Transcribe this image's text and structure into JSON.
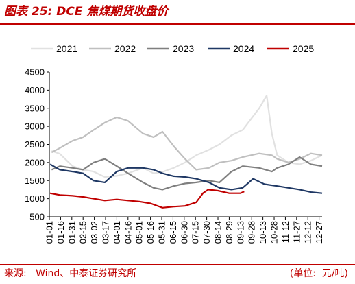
{
  "title": "图表 25:  DCE 焦煤期货收盘价",
  "source": "来源:   Wind、中泰证券研究所",
  "unit": "(单位:  元/吨)",
  "chart_data": {
    "type": "line",
    "xlabel": "",
    "ylabel": "",
    "ylim": [
      500,
      4500
    ],
    "yticks": [
      500,
      1000,
      1500,
      2000,
      2500,
      3000,
      3500,
      4000,
      4500
    ],
    "xtick_labels": [
      "01-01",
      "01-16",
      "01-31",
      "02-15",
      "03-02",
      "03-17",
      "04-01",
      "04-16",
      "05-01",
      "05-16",
      "05-31",
      "06-15",
      "06-30",
      "07-15",
      "07-30",
      "08-14",
      "08-29",
      "09-13",
      "09-28",
      "10-13",
      "10-28",
      "11-12",
      "11-27",
      "12-12",
      "12-27"
    ],
    "x_start": "01-01",
    "x_end": "12-31",
    "legend_position": "top",
    "grid": false,
    "series": [
      {
        "name": "2021",
        "color": "#e1e1e1",
        "points": [
          [
            "01-04",
            2320
          ],
          [
            "01-15",
            2240
          ],
          [
            "02-01",
            1900
          ],
          [
            "02-15",
            1800
          ],
          [
            "03-01",
            1750
          ],
          [
            "03-16",
            1600
          ],
          [
            "04-01",
            1630
          ],
          [
            "04-16",
            1700
          ],
          [
            "05-06",
            1850
          ],
          [
            "05-20",
            1700
          ],
          [
            "06-01",
            1740
          ],
          [
            "06-16",
            1850
          ],
          [
            "07-01",
            2000
          ],
          [
            "07-16",
            2200
          ],
          [
            "08-02",
            2350
          ],
          [
            "08-16",
            2500
          ],
          [
            "09-01",
            2750
          ],
          [
            "09-16",
            2900
          ],
          [
            "10-08",
            3500
          ],
          [
            "10-18",
            3850
          ],
          [
            "10-25",
            2800
          ],
          [
            "11-01",
            2200
          ],
          [
            "11-16",
            2000
          ],
          [
            "12-01",
            1950
          ],
          [
            "12-16",
            2050
          ],
          [
            "12-31",
            2200
          ]
        ]
      },
      {
        "name": "2022",
        "color": "#bfbfbf",
        "points": [
          [
            "01-04",
            2280
          ],
          [
            "01-15",
            2400
          ],
          [
            "02-01",
            2600
          ],
          [
            "02-15",
            2700
          ],
          [
            "03-01",
            2900
          ],
          [
            "03-16",
            3100
          ],
          [
            "04-01",
            3250
          ],
          [
            "04-16",
            3150
          ],
          [
            "05-06",
            2800
          ],
          [
            "05-20",
            2700
          ],
          [
            "06-01",
            2850
          ],
          [
            "06-16",
            2450
          ],
          [
            "07-01",
            2100
          ],
          [
            "07-16",
            1800
          ],
          [
            "08-02",
            1850
          ],
          [
            "08-16",
            2000
          ],
          [
            "09-01",
            2050
          ],
          [
            "09-16",
            2150
          ],
          [
            "10-08",
            2250
          ],
          [
            "10-25",
            2200
          ],
          [
            "11-01",
            2100
          ],
          [
            "11-16",
            2000
          ],
          [
            "12-01",
            2100
          ],
          [
            "12-16",
            2250
          ],
          [
            "12-31",
            2200
          ]
        ]
      },
      {
        "name": "2023",
        "color": "#7f7f7f",
        "points": [
          [
            "01-04",
            1800
          ],
          [
            "01-15",
            1900
          ],
          [
            "02-01",
            1850
          ],
          [
            "02-15",
            1800
          ],
          [
            "03-01",
            2000
          ],
          [
            "03-16",
            2100
          ],
          [
            "04-01",
            1900
          ],
          [
            "04-16",
            1700
          ],
          [
            "05-06",
            1450
          ],
          [
            "05-20",
            1300
          ],
          [
            "06-01",
            1250
          ],
          [
            "06-16",
            1350
          ],
          [
            "07-01",
            1420
          ],
          [
            "07-16",
            1450
          ],
          [
            "08-02",
            1500
          ],
          [
            "08-16",
            1450
          ],
          [
            "09-01",
            1750
          ],
          [
            "09-16",
            1900
          ],
          [
            "10-08",
            1850
          ],
          [
            "10-25",
            1750
          ],
          [
            "11-01",
            1850
          ],
          [
            "11-16",
            1950
          ],
          [
            "12-01",
            2150
          ],
          [
            "12-16",
            1950
          ],
          [
            "12-31",
            1900
          ]
        ]
      },
      {
        "name": "2024",
        "color": "#1f3864",
        "points": [
          [
            "01-02",
            1950
          ],
          [
            "01-15",
            1800
          ],
          [
            "02-01",
            1750
          ],
          [
            "02-15",
            1700
          ],
          [
            "03-01",
            1500
          ],
          [
            "03-16",
            1450
          ],
          [
            "04-01",
            1750
          ],
          [
            "04-16",
            1850
          ],
          [
            "05-06",
            1850
          ],
          [
            "05-20",
            1800
          ],
          [
            "06-01",
            1700
          ],
          [
            "06-16",
            1620
          ],
          [
            "07-01",
            1600
          ],
          [
            "07-16",
            1550
          ],
          [
            "08-02",
            1450
          ],
          [
            "08-16",
            1300
          ],
          [
            "09-01",
            1250
          ],
          [
            "09-16",
            1300
          ],
          [
            "09-30",
            1550
          ],
          [
            "10-15",
            1400
          ],
          [
            "11-01",
            1350
          ],
          [
            "11-16",
            1300
          ],
          [
            "12-01",
            1250
          ],
          [
            "12-16",
            1180
          ],
          [
            "12-31",
            1150
          ]
        ]
      },
      {
        "name": "2025",
        "color": "#c00000",
        "points": [
          [
            "01-02",
            1150
          ],
          [
            "01-15",
            1100
          ],
          [
            "02-01",
            1080
          ],
          [
            "02-15",
            1050
          ],
          [
            "03-01",
            1000
          ],
          [
            "03-16",
            950
          ],
          [
            "04-01",
            980
          ],
          [
            "04-16",
            950
          ],
          [
            "05-01",
            920
          ],
          [
            "05-16",
            870
          ],
          [
            "06-01",
            750
          ],
          [
            "06-16",
            780
          ],
          [
            "07-01",
            800
          ],
          [
            "07-16",
            900
          ],
          [
            "07-25",
            1150
          ],
          [
            "08-01",
            1250
          ],
          [
            "08-14",
            1220
          ],
          [
            "08-29",
            1150
          ],
          [
            "09-13",
            1150
          ],
          [
            "09-18",
            1200
          ]
        ]
      }
    ]
  }
}
